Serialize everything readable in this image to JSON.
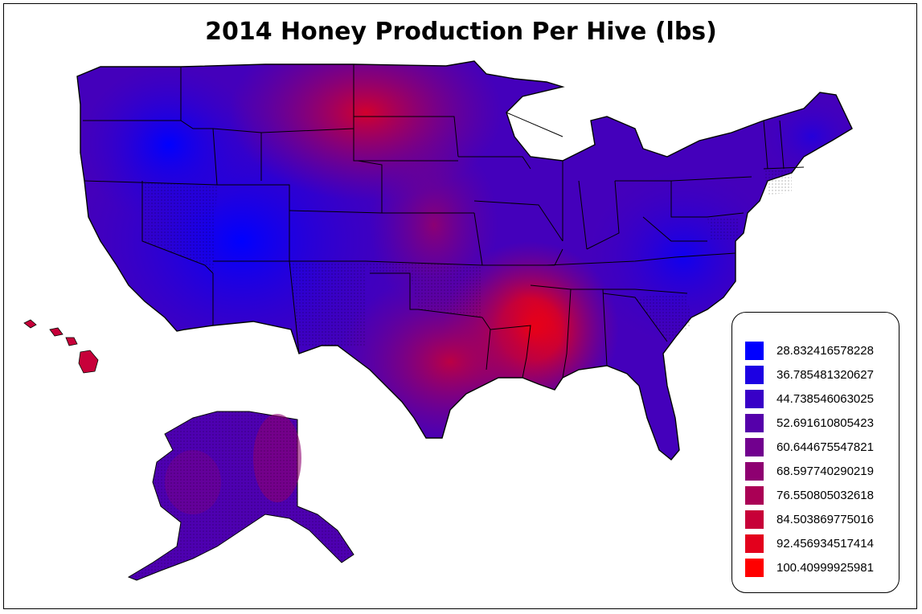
{
  "title": "2014 Honey Production Per Hive (lbs)",
  "legend": {
    "items": [
      {
        "label": "28.832416578228",
        "color": "#0000FF"
      },
      {
        "label": "36.785481320627",
        "color": "#1C00E3"
      },
      {
        "label": "44.738546063025",
        "color": "#3800C7"
      },
      {
        "label": "52.691610805423",
        "color": "#5500AA"
      },
      {
        "label": "60.644675547821",
        "color": "#71008E"
      },
      {
        "label": "68.597740290219",
        "color": "#8E0071"
      },
      {
        "label": "76.550805032618",
        "color": "#AA0055"
      },
      {
        "label": "84.503869775016",
        "color": "#C70038"
      },
      {
        "label": "92.456934517414",
        "color": "#E3001C"
      },
      {
        "label": "100.40999925981",
        "color": "#FF0000"
      }
    ]
  },
  "map_colors": {
    "low": "#0000FF",
    "mid": "#5500AA",
    "high": "#FF0000"
  }
}
